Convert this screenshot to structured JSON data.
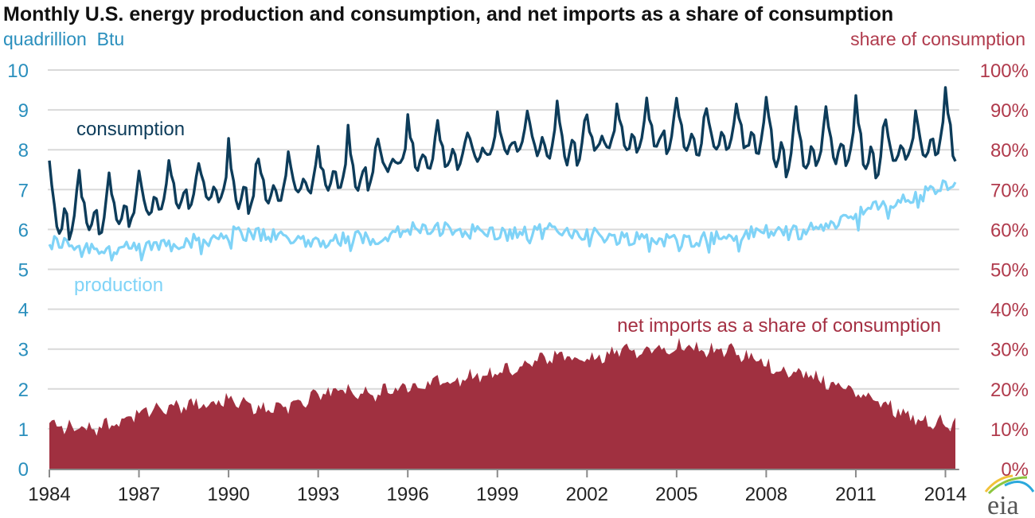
{
  "chart_data": {
    "type": "line",
    "title": "Monthly U.S. energy production and consumption, and net imports as a share of consumption",
    "ylabel_left": "quadrillion  Btu",
    "ylabel_right": "share of consumption",
    "ylim_left": [
      0,
      10
    ],
    "ylim_right": [
      0,
      100
    ],
    "y_ticks_left": [
      "0",
      "1",
      "2",
      "3",
      "4",
      "5",
      "6",
      "7",
      "8",
      "9",
      "10"
    ],
    "y_ticks_right": [
      "0%",
      "10%",
      "20%",
      "30%",
      "40%",
      "50%",
      "60%",
      "70%",
      "80%",
      "90%",
      "100%"
    ],
    "x_ticks": [
      "1984",
      "1987",
      "1990",
      "1993",
      "1996",
      "1999",
      "2002",
      "2005",
      "2008",
      "2011",
      "2014"
    ],
    "xlim": [
      1984,
      2014.3
    ],
    "grid": true,
    "frequency": "monthly",
    "annual_x": [
      1984,
      1985,
      1986,
      1987,
      1988,
      1989,
      1990,
      1991,
      1992,
      1993,
      1994,
      1995,
      1996,
      1997,
      1998,
      1999,
      2000,
      2001,
      2002,
      2003,
      2004,
      2005,
      2006,
      2007,
      2008,
      2009,
      2010,
      2011,
      2012,
      2013,
      2014
    ],
    "series": [
      {
        "name": "consumption",
        "label": "consumption",
        "axis": "left",
        "units": "quadrillion Btu",
        "color": "#0d3c5a",
        "style": "line",
        "annual_mean": [
          6.4,
          6.4,
          6.4,
          6.6,
          6.9,
          7.0,
          7.0,
          7.0,
          7.1,
          7.3,
          7.4,
          7.6,
          7.9,
          7.9,
          7.9,
          8.1,
          8.3,
          8.1,
          8.2,
          8.3,
          8.4,
          8.4,
          8.3,
          8.4,
          8.3,
          7.9,
          8.1,
          8.1,
          7.9,
          8.1,
          8.3
        ],
        "winter_peak": [
          7.7,
          7.4,
          7.4,
          7.5,
          7.8,
          7.7,
          8.2,
          7.8,
          7.9,
          8.0,
          8.6,
          8.2,
          8.8,
          8.7,
          8.5,
          8.9,
          9.0,
          9.2,
          8.8,
          9.2,
          9.3,
          9.3,
          9.0,
          9.2,
          9.4,
          9.0,
          9.0,
          9.3,
          8.7,
          9.0,
          9.6
        ]
      },
      {
        "name": "production",
        "label": "production",
        "axis": "left",
        "units": "quadrillion Btu",
        "color": "#7fd3f7",
        "style": "line",
        "annual_mean": [
          5.7,
          5.6,
          5.5,
          5.5,
          5.7,
          5.7,
          5.9,
          5.9,
          5.8,
          5.7,
          5.8,
          5.8,
          6.0,
          6.0,
          6.0,
          5.9,
          5.9,
          6.0,
          5.9,
          5.8,
          5.8,
          5.7,
          5.8,
          5.8,
          6.0,
          5.9,
          6.1,
          6.4,
          6.6,
          6.8,
          7.1
        ]
      },
      {
        "name": "net imports as a share of consumption",
        "label": "net imports as a share of consumption",
        "axis": "right",
        "units": "percent",
        "color": "#a03040",
        "style": "area",
        "annual_mean": [
          11,
          10,
          11,
          14,
          15,
          16,
          17,
          15,
          16,
          18,
          20,
          19,
          20,
          22,
          23,
          24,
          26,
          28,
          27,
          29,
          30,
          31,
          30,
          29,
          26,
          24,
          22,
          19,
          16,
          13,
          11
        ]
      }
    ]
  },
  "branding": {
    "logo_text": "eia",
    "logo_colors": [
      "#f2c23a",
      "#8cc63f",
      "#2aa8dc"
    ]
  }
}
